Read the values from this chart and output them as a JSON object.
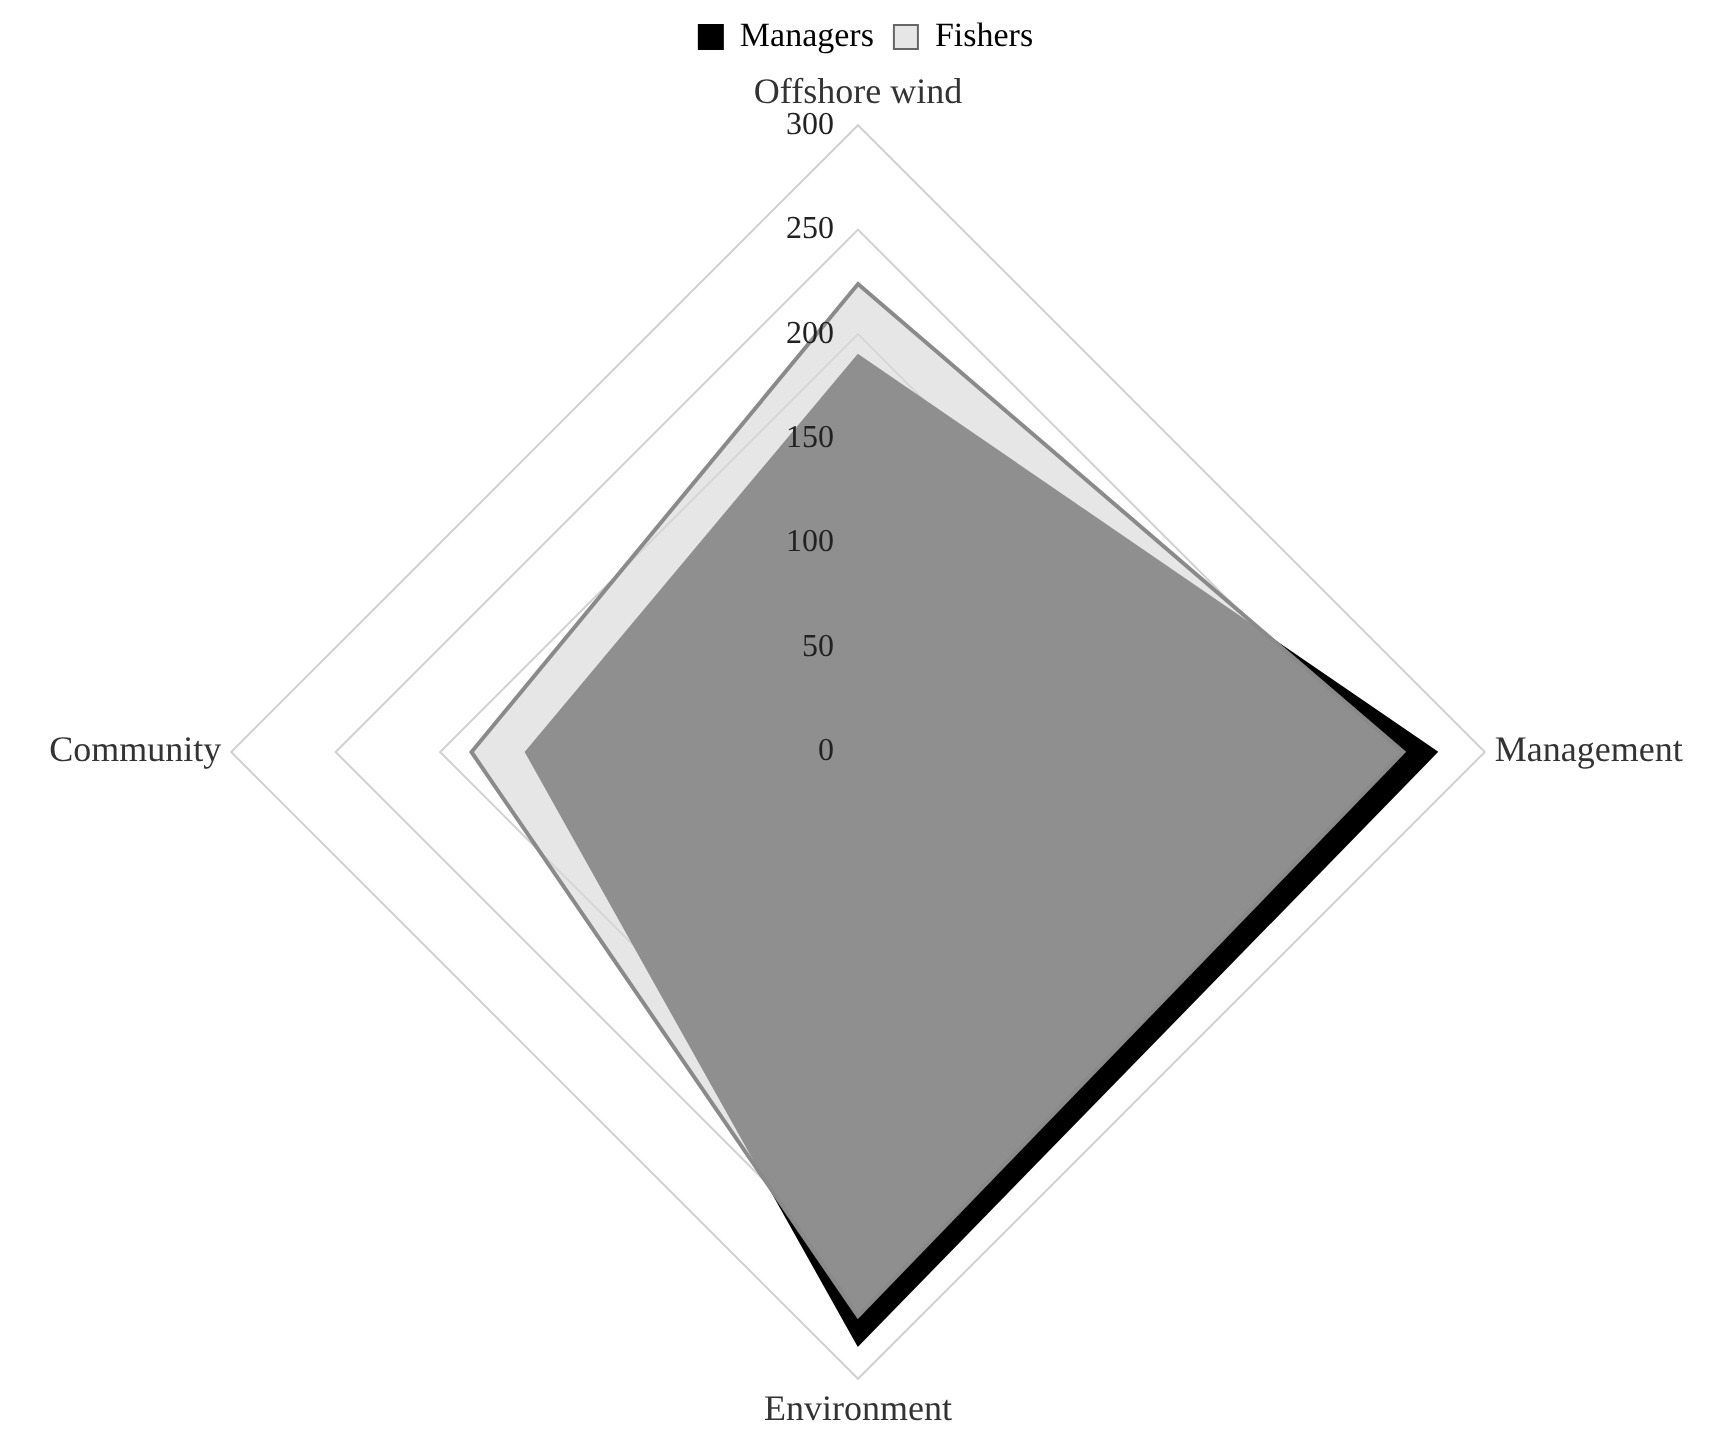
{
  "chart_data": {
    "type": "radar",
    "categories": [
      "Offshore wind",
      "Management",
      "Environment",
      "Community"
    ],
    "series": [
      {
        "name": "Managers",
        "color": "#000000",
        "values": [
          190,
          277,
          284,
          159
        ]
      },
      {
        "name": "Fishers",
        "color": "#d9d9d9",
        "values": [
          224,
          261,
          270,
          185
        ]
      }
    ],
    "ylim": [
      0,
      300
    ],
    "yticks": [
      0,
      50,
      100,
      150,
      200,
      250,
      300
    ],
    "grid": true,
    "legend": "top"
  }
}
